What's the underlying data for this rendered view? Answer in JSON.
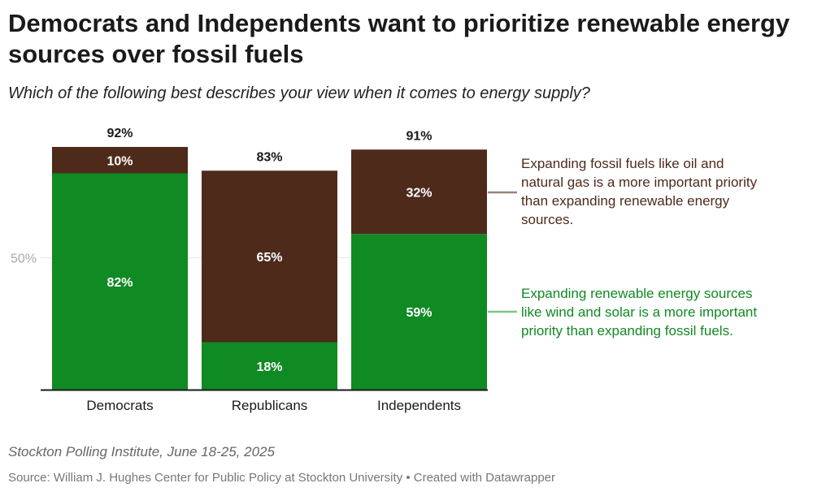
{
  "title": "Democrats and Independents want to prioritize renewable energy sources over fossil fuels",
  "subtitle": "Which of the following best describes your view when it comes to energy supply?",
  "note": "Stockton Polling Institute, June 18-25, 2025",
  "source": "Source: William J. Hughes Center for Public Policy at Stockton University • Created with Datawrapper",
  "colors": {
    "renewable": "#108a22",
    "fossil": "#4e2a1b",
    "total_label": "#1a1a1a",
    "grid": "#e6e6e6",
    "axis": "#1a1a1a",
    "tick": "#aaaaaa"
  },
  "chart_data": {
    "type": "bar",
    "stacked": true,
    "categories": [
      "Democrats",
      "Republicans",
      "Independents"
    ],
    "series": [
      {
        "name": "Expanding renewable energy sources like wind and solar is a more important priority than expanding fossil fuels.",
        "key": "renewable",
        "values": [
          82,
          18,
          59
        ],
        "labels": [
          "82%",
          "18%",
          "59%"
        ]
      },
      {
        "name": "Expanding fossil fuels like oil and natural gas is a more important priority than expanding renewable energy sources.",
        "key": "fossil",
        "values": [
          10,
          65,
          32
        ],
        "labels": [
          "10%",
          "65%",
          "32%"
        ]
      }
    ],
    "totals": [
      92,
      83,
      91
    ],
    "total_labels": [
      "92%",
      "83%",
      "91%"
    ],
    "ylim": [
      0,
      100
    ],
    "yticks": [
      50
    ],
    "ytick_labels": [
      "50%"
    ],
    "legend_lines": {
      "fossil": [
        "Expanding fossil fuels like oil and",
        "natural gas is a more important priority",
        "than expanding renewable energy",
        "sources."
      ],
      "renewable": [
        "Expanding renewable energy sources",
        "like wind and solar is a more important",
        "priority than expanding fossil fuels."
      ]
    },
    "legend_position": "right"
  }
}
